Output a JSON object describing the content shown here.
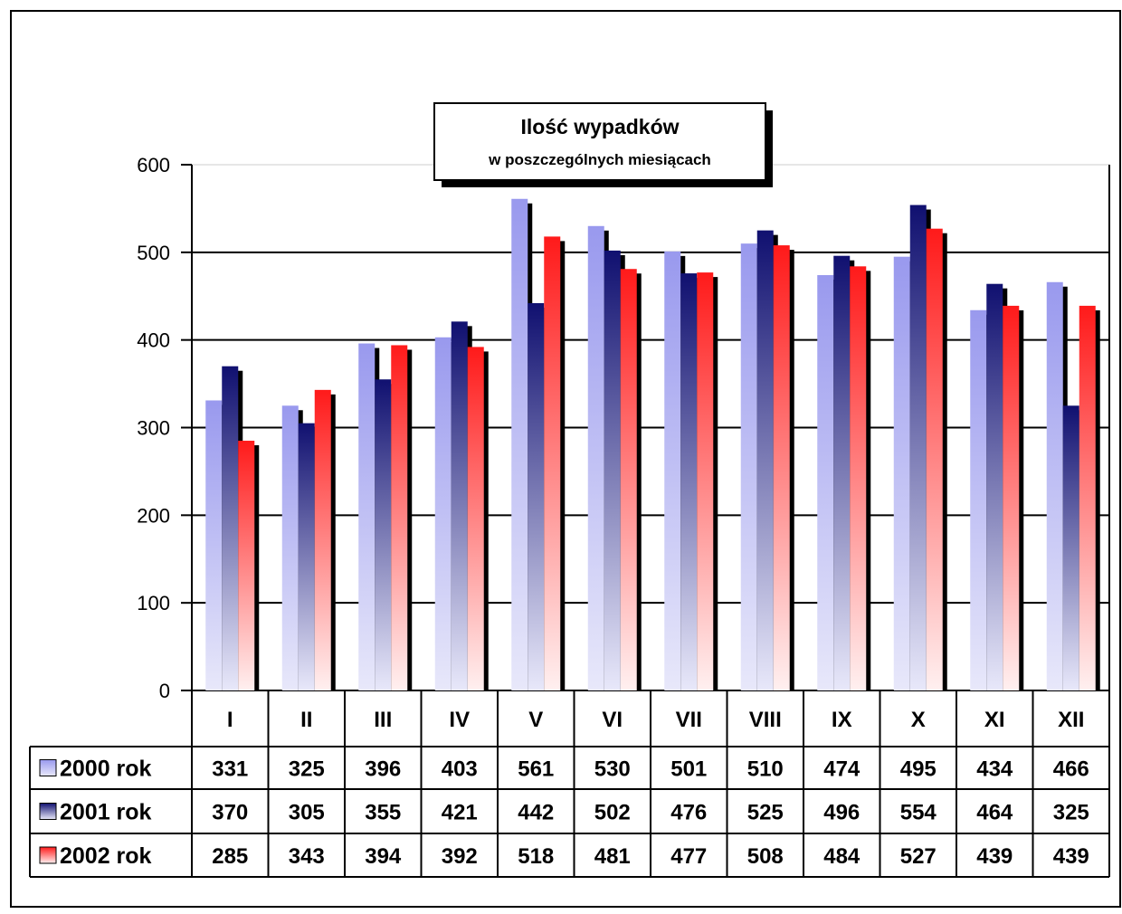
{
  "chart_data": {
    "type": "bar",
    "title": "Ilość wypadków",
    "subtitle": "w poszczególnych miesiącach",
    "categories": [
      "I",
      "II",
      "III",
      "IV",
      "V",
      "VI",
      "VII",
      "VIII",
      "IX",
      "X",
      "XI",
      "XII"
    ],
    "series": [
      {
        "name": "2000 rok",
        "values": [
          331,
          325,
          396,
          403,
          561,
          530,
          501,
          510,
          474,
          495,
          434,
          466
        ],
        "color_top": "#9999ee",
        "color_bottom": "#e8e8fa"
      },
      {
        "name": "2001 rok",
        "values": [
          370,
          305,
          355,
          421,
          442,
          502,
          476,
          525,
          496,
          554,
          464,
          325
        ],
        "color_top": "#101070",
        "color_bottom": "#e8e8fa"
      },
      {
        "name": "2002 rok",
        "values": [
          285,
          343,
          394,
          392,
          518,
          481,
          477,
          508,
          484,
          527,
          439,
          439
        ],
        "color_top": "#ff1a1a",
        "color_bottom": "#fff0f0"
      }
    ],
    "yticks": [
      0,
      100,
      200,
      300,
      400,
      500,
      600
    ],
    "ylim": [
      0,
      600
    ],
    "grid": true,
    "data_table": true,
    "legend": "data-table-left"
  }
}
